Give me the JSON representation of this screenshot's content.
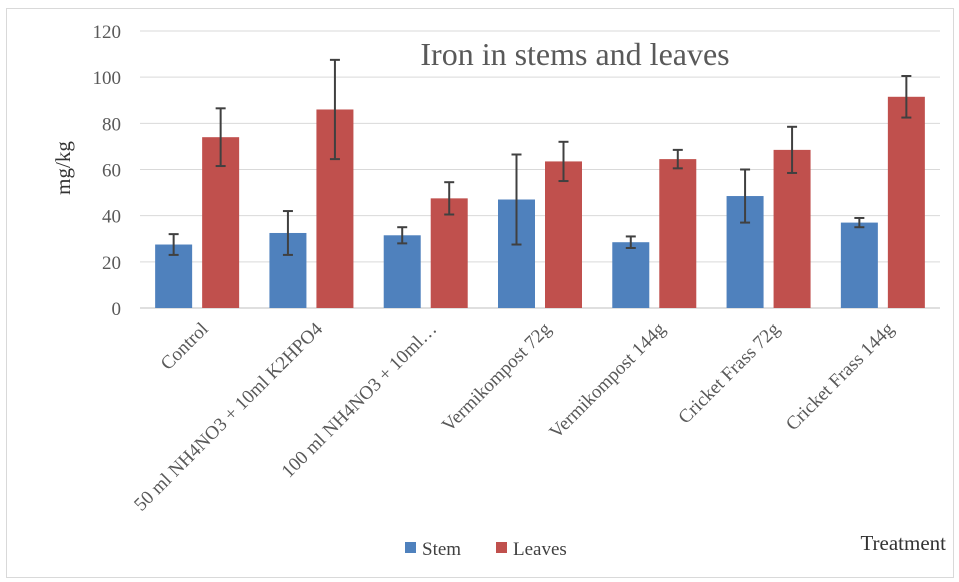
{
  "chart_data": {
    "type": "bar",
    "title": "Iron in stems and leaves",
    "xlabel": "Treatment",
    "ylabel": "mg/kg",
    "ylim": [
      0,
      120
    ],
    "yticks": [
      0,
      20,
      40,
      60,
      80,
      100,
      120
    ],
    "grid": true,
    "legend_position": "bottom",
    "categories": [
      "Control",
      "50 ml NH4NO3 + 10ml K2HPO4",
      "100 ml NH4NO3 + 10ml…",
      "Vermikompost 72g",
      "Vermikompost 144g",
      "Cricket Frass 72g",
      "Cricket Frass 144g"
    ],
    "series": [
      {
        "name": "Stem",
        "color": "#4f81bd",
        "values": [
          27.5,
          32.5,
          31.5,
          47,
          28.5,
          48.5,
          37
        ],
        "error": [
          4.5,
          9.5,
          3.5,
          19.5,
          2.5,
          11.5,
          2
        ]
      },
      {
        "name": "Leaves",
        "color": "#c0504d",
        "values": [
          74,
          86,
          47.5,
          63.5,
          64.5,
          68.5,
          91.5
        ],
        "error": [
          12.5,
          21.5,
          7,
          8.5,
          4,
          10,
          9
        ]
      }
    ]
  }
}
